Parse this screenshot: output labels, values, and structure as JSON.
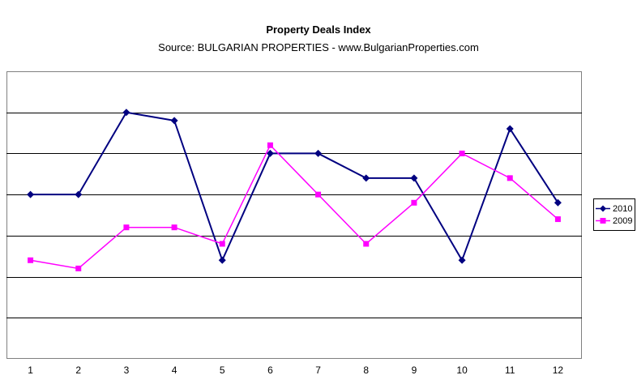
{
  "header": {
    "title": "Property Deals Index",
    "subtitle": "Source: BULGARIAN PROPERTIES - www.BulgarianProperties.com"
  },
  "chart_data": {
    "type": "line",
    "title": "Property Deals Index",
    "subtitle": "Source: BULGARIAN PROPERTIES - www.BulgarianProperties.com",
    "categories": [
      "1",
      "2",
      "3",
      "4",
      "5",
      "6",
      "7",
      "8",
      "9",
      "10",
      "11",
      "12"
    ],
    "series": [
      {
        "name": "2010",
        "color": "#000080",
        "marker": "diamond",
        "values": [
          4.0,
          4.0,
          6.0,
          5.8,
          2.4,
          5.0,
          5.0,
          4.4,
          4.4,
          2.4,
          5.6,
          3.8
        ]
      },
      {
        "name": "2009",
        "color": "#FF00FF",
        "marker": "square",
        "values": [
          2.4,
          2.2,
          3.2,
          3.2,
          2.8,
          5.2,
          4.0,
          2.8,
          3.8,
          5.0,
          4.4,
          3.4
        ]
      }
    ],
    "xlabel": "",
    "ylabel": "",
    "ylim": [
      0,
      7
    ],
    "grid": true,
    "y_axis_labels_visible": false,
    "legend_position": "right",
    "plot_border_color": "#808080",
    "gridline_color": "#000000",
    "background_color": "#ffffff"
  }
}
